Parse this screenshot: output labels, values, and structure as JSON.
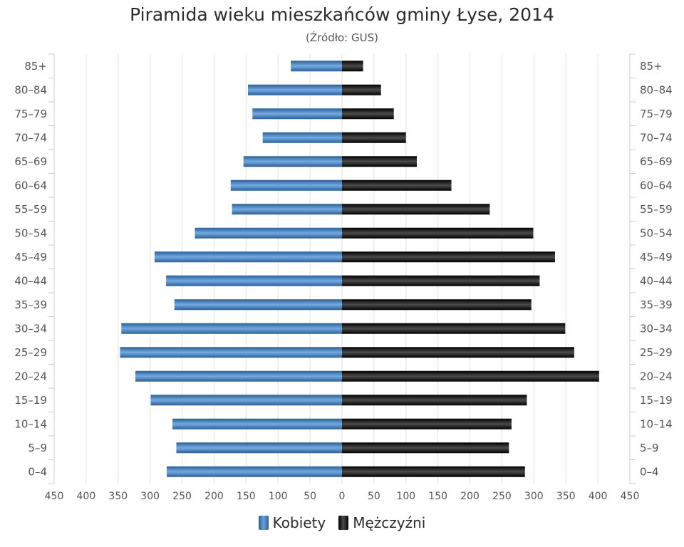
{
  "chart_data": {
    "type": "bar",
    "orientation": "horizontal",
    "title": "Piramida wieku mieszkańców gminy Łyse, 2014",
    "subtitle": "(Źródło: GUS)",
    "categories": [
      "85+",
      "80–84",
      "75–79",
      "70–74",
      "65–69",
      "60–64",
      "55–59",
      "50–54",
      "45–49",
      "40–44",
      "35–39",
      "30–34",
      "25–29",
      "20–24",
      "15–19",
      "10–14",
      "5–9",
      "0–4"
    ],
    "series": [
      {
        "name": "Kobiety",
        "side": "left",
        "color": "#4a86c8",
        "values": [
          80,
          147,
          140,
          124,
          154,
          174,
          172,
          230,
          293,
          275,
          262,
          345,
          347,
          323,
          299,
          265,
          259,
          274
        ]
      },
      {
        "name": "Mężczyźni",
        "side": "right",
        "color": "#111111",
        "values": [
          33,
          61,
          81,
          100,
          117,
          171,
          231,
          299,
          333,
          309,
          296,
          349,
          363,
          402,
          289,
          265,
          261,
          286
        ]
      }
    ],
    "xlim": [
      -450,
      450
    ],
    "x_ticks": [
      -450,
      -400,
      -350,
      -300,
      -250,
      -200,
      -150,
      -100,
      -50,
      0,
      50,
      100,
      150,
      200,
      250,
      300,
      350,
      400,
      450
    ],
    "x_tick_labels": [
      "450",
      "400",
      "350",
      "300",
      "250",
      "200",
      "150",
      "100",
      "50",
      "0",
      "50",
      "100",
      "150",
      "200",
      "250",
      "300",
      "350",
      "400",
      "450"
    ],
    "grid": true,
    "legend_position": "bottom-center"
  },
  "legend": [
    {
      "label": "Kobiety",
      "icon": "blue-swatch-icon"
    },
    {
      "label": "Mężczyźni",
      "icon": "black-swatch-icon"
    }
  ]
}
